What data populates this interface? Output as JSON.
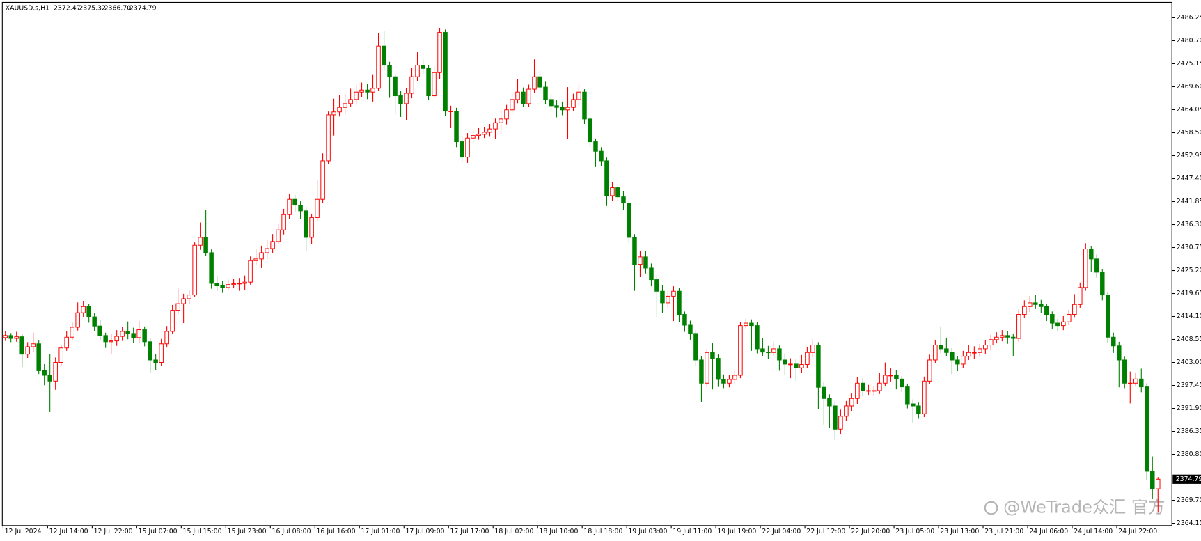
{
  "chart_data": {
    "type": "candlestick",
    "title": "XAUUSD.s,H1",
    "last_labels": [
      "2372.47",
      "2375.32",
      "2366.70",
      "2374.79"
    ],
    "watermark": "@WeTrade众汇 官方",
    "up_color": "#ff0000",
    "down_color": "#008000",
    "ylim": [
      2363.6,
      2489.95
    ],
    "yticks": [
      2486.25,
      {
        "value": 2480.7,
        "label": "2480.70"
      },
      2475.15,
      {
        "value": 2469.6,
        "label": "2469.60"
      },
      2464.05,
      {
        "value": 2458.5,
        "label": "2458.50"
      },
      2452.95,
      {
        "value": 2447.4,
        "label": "2447.40"
      },
      2441.85,
      {
        "value": 2436.3,
        "label": "2436.30"
      },
      2430.75,
      {
        "value": 2425.2,
        "label": "2425.20"
      },
      2419.65,
      {
        "value": 2414.1,
        "label": "2414.10"
      },
      2408.55,
      {
        "value": 2403,
        "label": "2403.00"
      },
      2397.45,
      {
        "value": 2391.9,
        "label": "2391.90"
      },
      2386.35,
      {
        "value": 2380.8,
        "label": "2380.80"
      },
      {
        "value": 2369.7,
        "label": "2369.70"
      },
      2364.15
    ],
    "xticks": [
      {
        "value": 0,
        "label": "12 Jul 2024"
      },
      {
        "value": 8,
        "label": "12 Jul 14:00"
      },
      {
        "value": 16,
        "label": "12 Jul 22:00"
      },
      {
        "value": 24,
        "label": "15 Jul 07:00"
      },
      {
        "value": 32,
        "label": "15 Jul 15:00"
      },
      {
        "value": 40,
        "label": "15 Jul 23:00"
      },
      {
        "value": 48,
        "label": "16 Jul 08:00"
      },
      {
        "value": 56,
        "label": "16 Jul 16:00"
      },
      {
        "value": 64,
        "label": "17 Jul 01:00"
      },
      {
        "value": 72,
        "label": "17 Jul 09:00"
      },
      {
        "value": 80,
        "label": "17 Jul 17:00"
      },
      {
        "value": 88,
        "label": "18 Jul 02:00"
      },
      {
        "value": 96,
        "label": "18 Jul 10:00"
      },
      {
        "value": 104,
        "label": "18 Jul 18:00"
      },
      {
        "value": 112,
        "label": "19 Jul 03:00"
      },
      {
        "value": 120,
        "label": "19 Jul 11:00"
      },
      {
        "value": 128,
        "label": "19 Jul 19:00"
      },
      {
        "value": 136,
        "label": "22 Jul 04:00"
      },
      {
        "value": 144,
        "label": "22 Jul 12:00"
      },
      {
        "value": 152,
        "label": "22 Jul 20:00"
      },
      {
        "value": 160,
        "label": "23 Jul 05:00"
      },
      {
        "value": 168,
        "label": "23 Jul 13:00"
      },
      {
        "value": 176,
        "label": "23 Jul 21:00"
      },
      {
        "value": 184,
        "label": "24 Jul 06:00"
      },
      {
        "value": 192,
        "label": "24 Jul 14:00"
      },
      {
        "value": 200,
        "label": "24 Jul 22:00"
      }
    ],
    "ohlc": [
      [
        2409.0,
        2410.6,
        2408.2,
        2409.5
      ],
      [
        2409.5,
        2410.1,
        2407.9,
        2408.8
      ],
      [
        2408.8,
        2410.4,
        2408.0,
        2409.2
      ],
      [
        2409.2,
        2409.8,
        2401.9,
        2405.0
      ],
      [
        2405.0,
        2407.9,
        2404.1,
        2406.8
      ],
      [
        2406.8,
        2410.2,
        2405.6,
        2407.5
      ],
      [
        2407.5,
        2408.3,
        2400.2,
        2401.0
      ],
      [
        2401.0,
        2402.6,
        2397.5,
        2399.9
      ],
      [
        2399.9,
        2405.0,
        2391.0,
        2398.5
      ],
      [
        2398.5,
        2404.2,
        2396.4,
        2403.0
      ],
      [
        2403.0,
        2407.3,
        2402.1,
        2406.5
      ],
      [
        2406.5,
        2410.5,
        2405.8,
        2409.1
      ],
      [
        2409.1,
        2412.6,
        2408.3,
        2411.5
      ],
      [
        2411.5,
        2417.5,
        2410.7,
        2415.0
      ],
      [
        2415.0,
        2417.8,
        2413.9,
        2416.5
      ],
      [
        2416.5,
        2417.2,
        2412.6,
        2414.0
      ],
      [
        2414.0,
        2414.9,
        2410.5,
        2411.8
      ],
      [
        2411.8,
        2413.4,
        2408.4,
        2409.5
      ],
      [
        2409.5,
        2410.2,
        2406.5,
        2408.0
      ],
      [
        2408.0,
        2409.9,
        2405.1,
        2408.2
      ],
      [
        2408.2,
        2410.8,
        2407.0,
        2409.3
      ],
      [
        2409.3,
        2411.6,
        2408.2,
        2410.5
      ],
      [
        2410.5,
        2412.9,
        2408.6,
        2410.0
      ],
      [
        2410.0,
        2411.4,
        2407.7,
        2409.0
      ],
      [
        2409.0,
        2413.0,
        2407.8,
        2410.9
      ],
      [
        2410.9,
        2411.7,
        2406.9,
        2408.0
      ],
      [
        2408.0,
        2408.9,
        2400.5,
        2403.6
      ],
      [
        2403.6,
        2405.1,
        2401.2,
        2403.0
      ],
      [
        2403.0,
        2408.7,
        2402.2,
        2407.5
      ],
      [
        2407.5,
        2411.8,
        2406.6,
        2410.5
      ],
      [
        2410.5,
        2416.9,
        2409.8,
        2415.6
      ],
      [
        2415.6,
        2420.9,
        2414.7,
        2417.2
      ],
      [
        2417.2,
        2419.6,
        2412.5,
        2418.4
      ],
      [
        2418.4,
        2420.5,
        2417.1,
        2419.3
      ],
      [
        2419.3,
        2432.0,
        2418.8,
        2431.3
      ],
      [
        2431.3,
        2436.8,
        2430.2,
        2433.2
      ],
      [
        2433.2,
        2439.8,
        2428.7,
        2429.5
      ],
      [
        2429.5,
        2430.3,
        2420.8,
        2422.1
      ],
      [
        2422.1,
        2423.9,
        2420.2,
        2421.5
      ],
      [
        2421.5,
        2422.6,
        2419.8,
        2421.1
      ],
      [
        2421.1,
        2423.0,
        2420.6,
        2421.8
      ],
      [
        2421.8,
        2423.1,
        2420.9,
        2422.0
      ],
      [
        2422.0,
        2423.4,
        2420.3,
        2422.1
      ],
      [
        2422.1,
        2424.0,
        2420.5,
        2422.4
      ],
      [
        2422.4,
        2428.6,
        2421.8,
        2427.6
      ],
      [
        2427.6,
        2430.3,
        2426.5,
        2428.0
      ],
      [
        2428.0,
        2431.2,
        2425.8,
        2429.5
      ],
      [
        2429.5,
        2432.5,
        2428.1,
        2430.5
      ],
      [
        2430.5,
        2434.0,
        2429.4,
        2432.2
      ],
      [
        2432.2,
        2436.4,
        2431.5,
        2435.0
      ],
      [
        2435.0,
        2440.1,
        2433.9,
        2438.7
      ],
      [
        2438.7,
        2443.8,
        2437.6,
        2442.4
      ],
      [
        2442.4,
        2443.5,
        2439.4,
        2441.0
      ],
      [
        2441.0,
        2441.9,
        2437.7,
        2439.6
      ],
      [
        2439.6,
        2440.4,
        2430.0,
        2433.2
      ],
      [
        2433.2,
        2438.9,
        2431.6,
        2438.0
      ],
      [
        2438.0,
        2447.0,
        2437.2,
        2442.4
      ],
      [
        2442.4,
        2453.5,
        2441.5,
        2451.7
      ],
      [
        2451.7,
        2463.6,
        2450.9,
        2462.8
      ],
      [
        2462.8,
        2466.7,
        2457.8,
        2463.5
      ],
      [
        2463.5,
        2467.5,
        2462.4,
        2464.6
      ],
      [
        2464.6,
        2467.8,
        2462.9,
        2465.5
      ],
      [
        2465.5,
        2469.1,
        2464.8,
        2466.5
      ],
      [
        2466.5,
        2470.0,
        2465.2,
        2468.3
      ],
      [
        2468.3,
        2470.6,
        2467.0,
        2468.8
      ],
      [
        2468.8,
        2470.3,
        2466.6,
        2468.3
      ],
      [
        2468.3,
        2472.6,
        2466.0,
        2469.2
      ],
      [
        2469.2,
        2482.6,
        2468.6,
        2479.4
      ],
      [
        2479.4,
        2483.1,
        2473.5,
        2474.8
      ],
      [
        2474.8,
        2475.6,
        2466.9,
        2472.0
      ],
      [
        2472.0,
        2472.8,
        2463.0,
        2467.4
      ],
      [
        2467.4,
        2468.5,
        2462.3,
        2465.5
      ],
      [
        2465.5,
        2469.2,
        2461.5,
        2468.0
      ],
      [
        2468.0,
        2474.1,
        2466.8,
        2472.0
      ],
      [
        2472.0,
        2477.9,
        2470.9,
        2474.8
      ],
      [
        2474.8,
        2476.2,
        2472.7,
        2474.0
      ],
      [
        2474.0,
        2474.8,
        2466.3,
        2467.4
      ],
      [
        2467.4,
        2474.5,
        2466.8,
        2473.0
      ],
      [
        2473.0,
        2483.8,
        2471.5,
        2482.7
      ],
      [
        2482.7,
        2483.4,
        2462.5,
        2463.7
      ],
      [
        2463.7,
        2465.0,
        2459.6,
        2463.7
      ],
      [
        2463.7,
        2464.5,
        2455.0,
        2456.3
      ],
      [
        2456.3,
        2457.6,
        2451.4,
        2452.6
      ],
      [
        2452.6,
        2458.4,
        2451.2,
        2457.2
      ],
      [
        2457.2,
        2459.0,
        2456.0,
        2457.8
      ],
      [
        2457.8,
        2459.6,
        2456.8,
        2458.1
      ],
      [
        2458.1,
        2459.9,
        2457.2,
        2458.6
      ],
      [
        2458.6,
        2460.6,
        2457.5,
        2459.4
      ],
      [
        2459.4,
        2461.9,
        2457.0,
        2460.9
      ],
      [
        2460.9,
        2463.9,
        2458.1,
        2461.8
      ],
      [
        2461.8,
        2465.2,
        2460.5,
        2464.0
      ],
      [
        2464.0,
        2468.0,
        2463.1,
        2466.5
      ],
      [
        2466.5,
        2471.5,
        2465.6,
        2468.3
      ],
      [
        2468.3,
        2469.4,
        2464.8,
        2465.5
      ],
      [
        2465.5,
        2470.1,
        2464.7,
        2469.0
      ],
      [
        2469.0,
        2476.2,
        2468.1,
        2472.0
      ],
      [
        2472.0,
        2473.4,
        2468.2,
        2469.5
      ],
      [
        2469.5,
        2470.8,
        2465.4,
        2466.5
      ],
      [
        2466.5,
        2467.8,
        2463.6,
        2465.0
      ],
      [
        2465.0,
        2466.3,
        2462.2,
        2464.6
      ],
      [
        2464.6,
        2466.0,
        2462.7,
        2464.0
      ],
      [
        2464.0,
        2469.5,
        2457.0,
        2464.6
      ],
      [
        2464.6,
        2467.9,
        2463.8,
        2466.5
      ],
      [
        2466.5,
        2470.4,
        2465.0,
        2468.3
      ],
      [
        2468.3,
        2469.0,
        2460.6,
        2461.8
      ],
      [
        2461.8,
        2462.4,
        2455.1,
        2456.3
      ],
      [
        2456.3,
        2457.1,
        2450.2,
        2454.0
      ],
      [
        2454.0,
        2455.0,
        2450.4,
        2451.7
      ],
      [
        2451.7,
        2452.5,
        2440.8,
        2443.3
      ],
      [
        2443.3,
        2446.6,
        2442.1,
        2445.2
      ],
      [
        2445.2,
        2446.1,
        2442.0,
        2443.0
      ],
      [
        2443.0,
        2444.4,
        2439.9,
        2441.5
      ],
      [
        2441.5,
        2442.3,
        2431.8,
        2433.2
      ],
      [
        2433.2,
        2434.0,
        2420.3,
        2426.7
      ],
      [
        2426.7,
        2430.0,
        2423.6,
        2428.5
      ],
      [
        2428.5,
        2429.9,
        2424.5,
        2425.8
      ],
      [
        2425.8,
        2426.9,
        2421.4,
        2423.0
      ],
      [
        2423.0,
        2424.1,
        2414.0,
        2420.2
      ],
      [
        2420.2,
        2421.6,
        2414.9,
        2417.4
      ],
      [
        2417.4,
        2420.3,
        2416.2,
        2419.0
      ],
      [
        2419.0,
        2421.4,
        2413.0,
        2420.2
      ],
      [
        2420.2,
        2421.0,
        2412.8,
        2414.6
      ],
      [
        2414.6,
        2415.3,
        2410.4,
        2412.0
      ],
      [
        2412.0,
        2413.1,
        2408.5,
        2410.0
      ],
      [
        2410.0,
        2410.8,
        2402.1,
        2403.6
      ],
      [
        2403.6,
        2404.5,
        2393.4,
        2398.0
      ],
      [
        2398.0,
        2406.3,
        2397.0,
        2405.4
      ],
      [
        2405.4,
        2407.8,
        2396.5,
        2404.0
      ],
      [
        2404.0,
        2405.0,
        2397.1,
        2398.9
      ],
      [
        2398.9,
        2400.1,
        2396.8,
        2398.0
      ],
      [
        2398.0,
        2400.0,
        2397.0,
        2398.9
      ],
      [
        2398.9,
        2401.2,
        2397.9,
        2399.9
      ],
      [
        2399.9,
        2412.8,
        2399.2,
        2411.9
      ],
      [
        2411.9,
        2413.6,
        2411.0,
        2412.5
      ],
      [
        2412.5,
        2413.4,
        2405.8,
        2411.9
      ],
      [
        2411.9,
        2412.7,
        2405.2,
        2406.3
      ],
      [
        2406.3,
        2408.9,
        2404.6,
        2405.5
      ],
      [
        2405.5,
        2407.0,
        2403.9,
        2405.4
      ],
      [
        2405.4,
        2408.0,
        2404.5,
        2406.3
      ],
      [
        2406.3,
        2407.1,
        2401.0,
        2403.6
      ],
      [
        2403.6,
        2405.2,
        2400.0,
        2402.6
      ],
      [
        2402.6,
        2404.0,
        2399.2,
        2402.6
      ],
      [
        2402.6,
        2403.9,
        2398.6,
        2401.7
      ],
      [
        2401.7,
        2404.8,
        2400.5,
        2402.5
      ],
      [
        2402.5,
        2406.8,
        2401.6,
        2405.4
      ],
      [
        2405.4,
        2408.6,
        2404.3,
        2407.2
      ],
      [
        2407.2,
        2407.9,
        2391.8,
        2397.0
      ],
      [
        2397.0,
        2398.2,
        2388.0,
        2394.3
      ],
      [
        2394.3,
        2395.3,
        2387.1,
        2392.5
      ],
      [
        2392.5,
        2393.6,
        2384.3,
        2386.9
      ],
      [
        2386.9,
        2391.6,
        2385.7,
        2390.0
      ],
      [
        2390.0,
        2393.7,
        2388.8,
        2392.5
      ],
      [
        2392.5,
        2395.5,
        2391.2,
        2394.3
      ],
      [
        2394.3,
        2399.4,
        2393.0,
        2398.0
      ],
      [
        2398.0,
        2399.2,
        2394.8,
        2396.2
      ],
      [
        2396.2,
        2397.6,
        2395.0,
        2396.2
      ],
      [
        2396.2,
        2397.4,
        2394.9,
        2396.2
      ],
      [
        2396.2,
        2400.5,
        2395.4,
        2398.0
      ],
      [
        2398.0,
        2403.0,
        2397.2,
        2399.9
      ],
      [
        2399.9,
        2401.6,
        2398.4,
        2399.9
      ],
      [
        2399.9,
        2401.1,
        2396.5,
        2399.0
      ],
      [
        2399.0,
        2399.7,
        2395.8,
        2397.1
      ],
      [
        2397.1,
        2397.9,
        2391.9,
        2393.0
      ],
      [
        2393.0,
        2394.1,
        2388.3,
        2392.5
      ],
      [
        2392.5,
        2393.3,
        2389.4,
        2390.6
      ],
      [
        2390.6,
        2399.6,
        2389.8,
        2398.5
      ],
      [
        2398.5,
        2404.9,
        2397.7,
        2403.6
      ],
      [
        2403.6,
        2408.4,
        2402.8,
        2407.2
      ],
      [
        2407.2,
        2411.5,
        2405.2,
        2406.3
      ],
      [
        2406.3,
        2409.0,
        2404.5,
        2405.4
      ],
      [
        2405.4,
        2406.5,
        2400.2,
        2403.6
      ],
      [
        2403.6,
        2404.5,
        2400.9,
        2402.6
      ],
      [
        2402.6,
        2405.8,
        2401.7,
        2404.5
      ],
      [
        2404.5,
        2407.2,
        2403.6,
        2405.4
      ],
      [
        2405.4,
        2406.9,
        2403.8,
        2405.4
      ],
      [
        2405.4,
        2407.5,
        2404.4,
        2406.3
      ],
      [
        2406.3,
        2408.3,
        2405.1,
        2407.2
      ],
      [
        2407.2,
        2409.7,
        2406.0,
        2408.5
      ],
      [
        2408.5,
        2410.3,
        2407.6,
        2409.1
      ],
      [
        2409.1,
        2410.8,
        2408.1,
        2409.5
      ],
      [
        2409.5,
        2410.6,
        2407.5,
        2409.1
      ],
      [
        2409.1,
        2410.0,
        2404.5,
        2408.8
      ],
      [
        2408.8,
        2415.8,
        2408.0,
        2414.6
      ],
      [
        2414.6,
        2418.0,
        2413.7,
        2416.5
      ],
      [
        2416.5,
        2419.1,
        2415.2,
        2417.4
      ],
      [
        2417.4,
        2419.4,
        2415.9,
        2417.0
      ],
      [
        2417.0,
        2418.1,
        2415.0,
        2416.5
      ],
      [
        2416.5,
        2417.2,
        2413.0,
        2414.6
      ],
      [
        2414.6,
        2415.3,
        2411.1,
        2412.5
      ],
      [
        2412.5,
        2413.5,
        2410.6,
        2411.9
      ],
      [
        2411.9,
        2414.2,
        2410.8,
        2412.8
      ],
      [
        2412.8,
        2415.7,
        2412.0,
        2414.6
      ],
      [
        2414.6,
        2419.5,
        2413.8,
        2417.0
      ],
      [
        2417.0,
        2422.3,
        2416.2,
        2421.1
      ],
      [
        2421.1,
        2431.8,
        2420.3,
        2430.4
      ],
      [
        2430.4,
        2431.0,
        2424.9,
        2428.0
      ],
      [
        2428.0,
        2429.1,
        2423.5,
        2424.8
      ],
      [
        2424.8,
        2425.6,
        2418.0,
        2419.3
      ],
      [
        2419.3,
        2420.0,
        2407.8,
        2409.1
      ],
      [
        2409.1,
        2410.2,
        2405.3,
        2407.0
      ],
      [
        2407.0,
        2408.0,
        2397.0,
        2403.6
      ],
      [
        2403.6,
        2404.4,
        2396.8,
        2398.0
      ],
      [
        2398.0,
        2400.8,
        2393.1,
        2398.0
      ],
      [
        2398.0,
        2400.6,
        2397.2,
        2399.0
      ],
      [
        2399.0,
        2401.5,
        2395.8,
        2397.1
      ],
      [
        2397.1,
        2398.0,
        2374.5,
        2376.7
      ],
      [
        2376.7,
        2380.3,
        2370.0,
        2372.47
      ],
      [
        2372.47,
        2375.32,
        2366.7,
        2374.79
      ]
    ]
  }
}
